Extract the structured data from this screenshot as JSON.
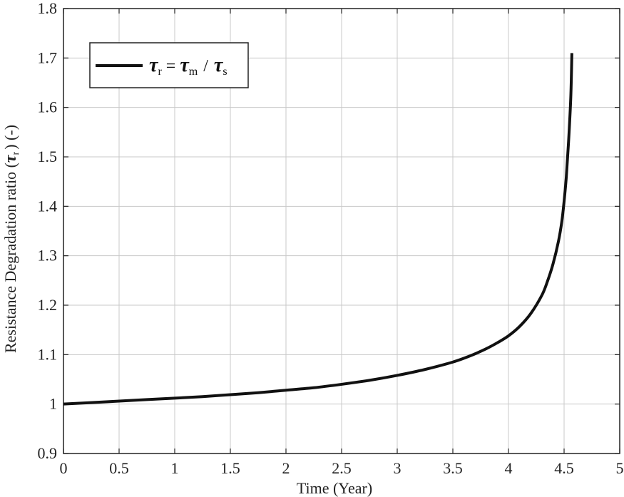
{
  "chart_data": {
    "type": "line",
    "xlabel": "Time (Year)",
    "ylabel_main": "Resistance Degradation ratio (",
    "ylabel_sym": "τ",
    "ylabel_sub": "r",
    "ylabel_tail": ") (-)",
    "xlim": [
      0,
      5
    ],
    "ylim": [
      0.9,
      1.8
    ],
    "x_ticks": [
      "0",
      "0.5",
      "1",
      "1.5",
      "2",
      "2.5",
      "3",
      "3.5",
      "4",
      "4.5",
      "5"
    ],
    "y_ticks": [
      "0.9",
      "1",
      "1.1",
      "1.2",
      "1.3",
      "1.4",
      "1.5",
      "1.6",
      "1.7",
      "1.8"
    ],
    "grid": true,
    "legend_position": "top-left",
    "series": [
      {
        "name": "τr = τm / τs",
        "color": "#111111",
        "x": [
          0,
          0.25,
          0.5,
          0.75,
          1.0,
          1.25,
          1.5,
          1.75,
          2.0,
          2.25,
          2.5,
          2.75,
          3.0,
          3.25,
          3.5,
          3.65,
          3.8,
          3.9,
          4.0,
          4.1,
          4.2,
          4.3,
          4.35,
          4.4,
          4.45,
          4.48,
          4.5,
          4.52,
          4.54,
          4.56,
          4.57
        ],
        "y": [
          1.0,
          1.003,
          1.006,
          1.009,
          1.012,
          1.015,
          1.019,
          1.023,
          1.028,
          1.033,
          1.04,
          1.048,
          1.058,
          1.07,
          1.085,
          1.097,
          1.112,
          1.124,
          1.138,
          1.157,
          1.183,
          1.22,
          1.248,
          1.283,
          1.33,
          1.37,
          1.41,
          1.46,
          1.53,
          1.62,
          1.71
        ]
      }
    ],
    "legend": {
      "sym_r": "τ",
      "sub_r": "r",
      "eq": "=",
      "sym_m": "τ",
      "sub_m": "m",
      "slash": "/",
      "sym_s": "τ",
      "sub_s": "s"
    }
  }
}
